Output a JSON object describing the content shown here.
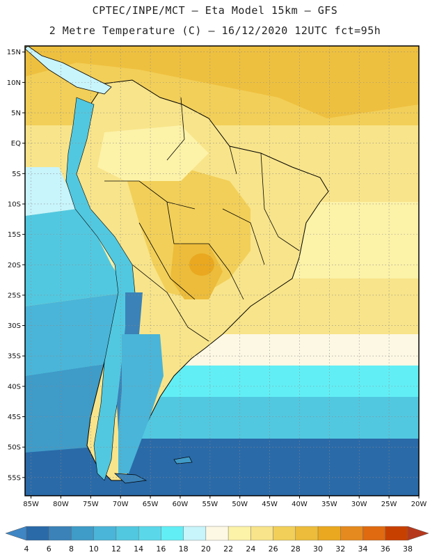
{
  "header": {
    "line1": "CPTEC/INPE/MCT –  Eta Model 15km – GFS",
    "line2": "2 Metre Temperature (C) – 16/12/2020 12UTC fct=95h"
  },
  "map": {
    "lon_range": [
      -86,
      -20
    ],
    "lat_range": [
      -58,
      16
    ],
    "lat_ticks": [
      "15N",
      "10N",
      "5N",
      "EQ",
      "5S",
      "10S",
      "15S",
      "20S",
      "25S",
      "30S",
      "35S",
      "40S",
      "45S",
      "50S",
      "55S"
    ],
    "lat_values": [
      15,
      10,
      5,
      0,
      -5,
      -10,
      -15,
      -20,
      -25,
      -30,
      -35,
      -40,
      -45,
      -50,
      -55
    ],
    "lon_ticks": [
      "85W",
      "80W",
      "75W",
      "70W",
      "65W",
      "60W",
      "55W",
      "50W",
      "45W",
      "40W",
      "35W",
      "30W",
      "25W",
      "20W"
    ],
    "lon_values": [
      -85,
      -80,
      -75,
      -70,
      -65,
      -60,
      -55,
      -50,
      -45,
      -40,
      -35,
      -30,
      -25,
      -20
    ]
  },
  "colorbar": {
    "labels": [
      "4",
      "6",
      "8",
      "10",
      "12",
      "14",
      "16",
      "18",
      "20",
      "22",
      "24",
      "26",
      "28",
      "30",
      "32",
      "34",
      "36",
      "38"
    ],
    "colors": [
      "#2a6aa8",
      "#3a82b8",
      "#3f9bc8",
      "#4ab5d8",
      "#52c8e0",
      "#5ad8ea",
      "#62eef5",
      "#c8f4fb",
      "#fdf8e4",
      "#fcf2a8",
      "#f8e48a",
      "#f2cf58",
      "#ecbc3a",
      "#e9a81f",
      "#e58a1e",
      "#df6a10",
      "#c84000"
    ],
    "low_color": "#3e86c4",
    "high_color": "#b6381c"
  }
}
